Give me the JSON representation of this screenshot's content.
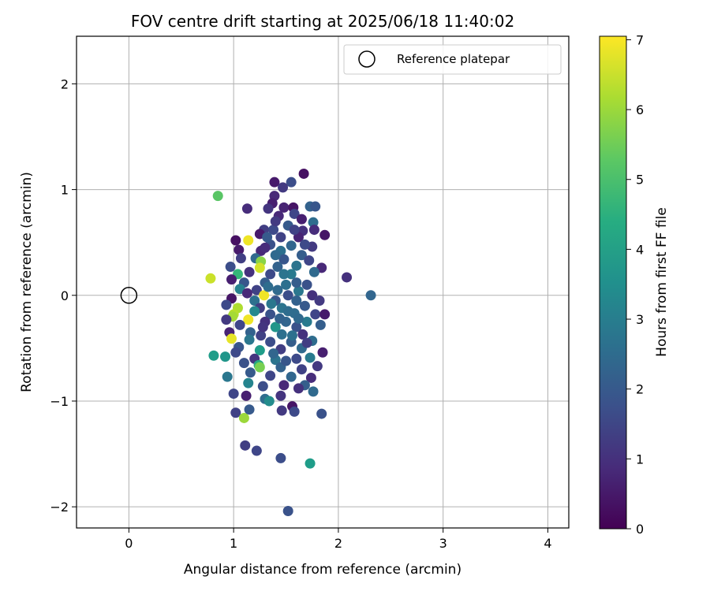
{
  "chart_data": {
    "type": "scatter",
    "title": "FOV centre drift starting at 2025/06/18 11:40:02",
    "xlabel": "Angular distance from reference (arcmin)",
    "ylabel": "Rotation from reference (arcmin)",
    "xlim": [
      -0.5,
      4.2
    ],
    "ylim": [
      -2.2,
      2.45
    ],
    "xticks": [
      0,
      1,
      2,
      3,
      4
    ],
    "xtick_labels": [
      "0",
      "1",
      "2",
      "3",
      "4"
    ],
    "yticks": [
      -2,
      -1,
      0,
      1,
      2
    ],
    "ytick_labels": [
      "−2",
      "−1",
      "0",
      "1",
      "2"
    ],
    "grid": true,
    "legend": {
      "position": "top-right",
      "label": "Reference platepar"
    },
    "reference_point": {
      "x": 0,
      "y": 0
    },
    "colorbar": {
      "label": "Hours from first FF file",
      "min": 0,
      "max": 7.05,
      "ticks": [
        0,
        1,
        2,
        3,
        4,
        5,
        6,
        7
      ],
      "tick_labels": [
        "0",
        "1",
        "2",
        "3",
        "4",
        "5",
        "6",
        "7"
      ],
      "colormap": "viridis"
    },
    "points": [
      {
        "x": 1.67,
        "y": 1.15,
        "c": 0.3
      },
      {
        "x": 1.39,
        "y": 1.07,
        "c": 0.5
      },
      {
        "x": 1.55,
        "y": 1.07,
        "c": 1.7
      },
      {
        "x": 1.47,
        "y": 1.02,
        "c": 1.2
      },
      {
        "x": 1.39,
        "y": 0.94,
        "c": 0.8
      },
      {
        "x": 0.85,
        "y": 0.94,
        "c": 5.2
      },
      {
        "x": 1.37,
        "y": 0.87,
        "c": 0.6
      },
      {
        "x": 1.48,
        "y": 0.83,
        "c": 0.7
      },
      {
        "x": 1.57,
        "y": 0.83,
        "c": 0.4
      },
      {
        "x": 1.13,
        "y": 0.82,
        "c": 0.9
      },
      {
        "x": 1.33,
        "y": 0.82,
        "c": 1.1
      },
      {
        "x": 1.73,
        "y": 0.84,
        "c": 2.2
      },
      {
        "x": 1.78,
        "y": 0.84,
        "c": 1.9
      },
      {
        "x": 1.58,
        "y": 0.77,
        "c": 1.5
      },
      {
        "x": 1.43,
        "y": 0.75,
        "c": 0.8
      },
      {
        "x": 1.65,
        "y": 0.72,
        "c": 0.6
      },
      {
        "x": 1.76,
        "y": 0.69,
        "c": 2.5
      },
      {
        "x": 1.29,
        "y": 0.62,
        "c": 1.3
      },
      {
        "x": 1.52,
        "y": 0.66,
        "c": 2.0
      },
      {
        "x": 1.38,
        "y": 0.62,
        "c": 1.6
      },
      {
        "x": 1.66,
        "y": 0.61,
        "c": 1.0
      },
      {
        "x": 1.77,
        "y": 0.62,
        "c": 0.9
      },
      {
        "x": 1.87,
        "y": 0.57,
        "c": 0.4
      },
      {
        "x": 1.25,
        "y": 0.58,
        "c": 0.5
      },
      {
        "x": 1.45,
        "y": 0.55,
        "c": 1.4
      },
      {
        "x": 1.62,
        "y": 0.55,
        "c": 0.7
      },
      {
        "x": 1.02,
        "y": 0.52,
        "c": 0.3
      },
      {
        "x": 1.14,
        "y": 0.52,
        "c": 6.9
      },
      {
        "x": 1.35,
        "y": 0.48,
        "c": 1.8
      },
      {
        "x": 1.55,
        "y": 0.47,
        "c": 2.3
      },
      {
        "x": 1.75,
        "y": 0.46,
        "c": 1.2
      },
      {
        "x": 1.05,
        "y": 0.43,
        "c": 0.5
      },
      {
        "x": 1.26,
        "y": 0.42,
        "c": 0.8
      },
      {
        "x": 1.45,
        "y": 0.42,
        "c": 2.6
      },
      {
        "x": 1.65,
        "y": 0.38,
        "c": 2.1
      },
      {
        "x": 1.07,
        "y": 0.35,
        "c": 1.3
      },
      {
        "x": 1.21,
        "y": 0.35,
        "c": 2.4
      },
      {
        "x": 1.26,
        "y": 0.32,
        "c": 5.8
      },
      {
        "x": 1.48,
        "y": 0.34,
        "c": 1.9
      },
      {
        "x": 1.72,
        "y": 0.33,
        "c": 1.5
      },
      {
        "x": 0.97,
        "y": 0.27,
        "c": 1.7
      },
      {
        "x": 1.25,
        "y": 0.26,
        "c": 6.6
      },
      {
        "x": 1.42,
        "y": 0.27,
        "c": 2.2
      },
      {
        "x": 1.6,
        "y": 0.28,
        "c": 2.7
      },
      {
        "x": 1.84,
        "y": 0.26,
        "c": 0.8
      },
      {
        "x": 1.04,
        "y": 0.2,
        "c": 4.7
      },
      {
        "x": 1.15,
        "y": 0.22,
        "c": 1.0
      },
      {
        "x": 1.35,
        "y": 0.2,
        "c": 1.6
      },
      {
        "x": 1.55,
        "y": 0.2,
        "c": 2.9
      },
      {
        "x": 1.77,
        "y": 0.22,
        "c": 2.4
      },
      {
        "x": 2.08,
        "y": 0.17,
        "c": 1.0
      },
      {
        "x": 0.78,
        "y": 0.16,
        "c": 6.5
      },
      {
        "x": 0.98,
        "y": 0.15,
        "c": 0.6
      },
      {
        "x": 1.1,
        "y": 0.12,
        "c": 1.9
      },
      {
        "x": 1.3,
        "y": 0.12,
        "c": 2.1
      },
      {
        "x": 1.5,
        "y": 0.1,
        "c": 2.6
      },
      {
        "x": 1.7,
        "y": 0.1,
        "c": 1.8
      },
      {
        "x": 1.06,
        "y": 0.06,
        "c": 3.1
      },
      {
        "x": 1.22,
        "y": 0.05,
        "c": 1.4
      },
      {
        "x": 1.42,
        "y": 0.05,
        "c": 2.4
      },
      {
        "x": 1.62,
        "y": 0.04,
        "c": 2.8
      },
      {
        "x": 1.29,
        "y": 0.0,
        "c": 6.9
      },
      {
        "x": 1.13,
        "y": 0.02,
        "c": 0.8
      },
      {
        "x": 1.52,
        "y": 0.0,
        "c": 1.7
      },
      {
        "x": 1.75,
        "y": 0.0,
        "c": 1.0
      },
      {
        "x": 2.31,
        "y": 0.0,
        "c": 2.3
      },
      {
        "x": 0.98,
        "y": -0.03,
        "c": 0.4
      },
      {
        "x": 1.2,
        "y": -0.05,
        "c": 2.6
      },
      {
        "x": 1.4,
        "y": -0.05,
        "c": 1.9
      },
      {
        "x": 1.6,
        "y": -0.05,
        "c": 2.2
      },
      {
        "x": 1.82,
        "y": -0.05,
        "c": 1.2
      },
      {
        "x": 0.93,
        "y": -0.09,
        "c": 1.6
      },
      {
        "x": 1.04,
        "y": -0.12,
        "c": 6.2
      },
      {
        "x": 1.25,
        "y": -0.12,
        "c": 1.3
      },
      {
        "x": 1.46,
        "y": -0.12,
        "c": 2.7
      },
      {
        "x": 1.68,
        "y": -0.1,
        "c": 2.0
      },
      {
        "x": 1.2,
        "y": -0.15,
        "c": 3.3
      },
      {
        "x": 1.0,
        "y": -0.18,
        "c": 6.3
      },
      {
        "x": 0.99,
        "y": -0.2,
        "c": 6.1
      },
      {
        "x": 1.35,
        "y": -0.18,
        "c": 1.8
      },
      {
        "x": 1.58,
        "y": -0.17,
        "c": 2.5
      },
      {
        "x": 1.78,
        "y": -0.18,
        "c": 1.5
      },
      {
        "x": 1.87,
        "y": -0.18,
        "c": 0.5
      },
      {
        "x": 0.93,
        "y": -0.23,
        "c": 1.2
      },
      {
        "x": 1.14,
        "y": -0.23,
        "c": 6.9
      },
      {
        "x": 1.3,
        "y": -0.25,
        "c": 1.0
      },
      {
        "x": 1.5,
        "y": -0.25,
        "c": 2.3
      },
      {
        "x": 1.7,
        "y": -0.25,
        "c": 2.9
      },
      {
        "x": 1.06,
        "y": -0.28,
        "c": 1.5
      },
      {
        "x": 1.4,
        "y": -0.3,
        "c": 3.7
      },
      {
        "x": 1.6,
        "y": -0.3,
        "c": 1.8
      },
      {
        "x": 1.83,
        "y": -0.28,
        "c": 2.1
      },
      {
        "x": 0.96,
        "y": -0.35,
        "c": 0.7
      },
      {
        "x": 1.16,
        "y": -0.35,
        "c": 2.2
      },
      {
        "x": 1.26,
        "y": -0.38,
        "c": 1.4
      },
      {
        "x": 1.46,
        "y": -0.37,
        "c": 2.6
      },
      {
        "x": 1.66,
        "y": -0.37,
        "c": 1.0
      },
      {
        "x": 0.98,
        "y": -0.41,
        "c": 6.8
      },
      {
        "x": 1.15,
        "y": -0.42,
        "c": 2.8
      },
      {
        "x": 1.35,
        "y": -0.44,
        "c": 1.7
      },
      {
        "x": 1.55,
        "y": -0.44,
        "c": 2.1
      },
      {
        "x": 1.75,
        "y": -0.43,
        "c": 2.5
      },
      {
        "x": 1.05,
        "y": -0.49,
        "c": 1.9
      },
      {
        "x": 1.25,
        "y": -0.52,
        "c": 3.9
      },
      {
        "x": 1.45,
        "y": -0.51,
        "c": 1.3
      },
      {
        "x": 1.65,
        "y": -0.5,
        "c": 2.4
      },
      {
        "x": 1.85,
        "y": -0.54,
        "c": 0.6
      },
      {
        "x": 1.02,
        "y": -0.54,
        "c": 1.6
      },
      {
        "x": 0.81,
        "y": -0.57,
        "c": 3.9
      },
      {
        "x": 0.92,
        "y": -0.58,
        "c": 3.7
      },
      {
        "x": 1.2,
        "y": -0.6,
        "c": 1.1
      },
      {
        "x": 1.4,
        "y": -0.61,
        "c": 2.7
      },
      {
        "x": 1.6,
        "y": -0.6,
        "c": 1.6
      },
      {
        "x": 1.73,
        "y": -0.59,
        "c": 2.9
      },
      {
        "x": 1.1,
        "y": -0.64,
        "c": 1.8
      },
      {
        "x": 1.24,
        "y": -0.66,
        "c": 4.2
      },
      {
        "x": 1.25,
        "y": -0.68,
        "c": 5.6
      },
      {
        "x": 1.45,
        "y": -0.68,
        "c": 2.2
      },
      {
        "x": 1.65,
        "y": -0.7,
        "c": 1.4
      },
      {
        "x": 1.8,
        "y": -0.67,
        "c": 1.2
      },
      {
        "x": 1.16,
        "y": -0.73,
        "c": 2.0
      },
      {
        "x": 1.35,
        "y": -0.76,
        "c": 1.5
      },
      {
        "x": 1.55,
        "y": -0.77,
        "c": 2.3
      },
      {
        "x": 0.94,
        "y": -0.77,
        "c": 2.8
      },
      {
        "x": 1.74,
        "y": -0.78,
        "c": 0.9
      },
      {
        "x": 1.14,
        "y": -0.83,
        "c": 3.2
      },
      {
        "x": 1.28,
        "y": -0.86,
        "c": 1.7
      },
      {
        "x": 1.48,
        "y": -0.85,
        "c": 0.8
      },
      {
        "x": 1.68,
        "y": -0.85,
        "c": 2.1
      },
      {
        "x": 1.76,
        "y": -0.91,
        "c": 2.4
      },
      {
        "x": 1.0,
        "y": -0.93,
        "c": 1.5
      },
      {
        "x": 1.12,
        "y": -0.95,
        "c": 0.6
      },
      {
        "x": 1.3,
        "y": -0.98,
        "c": 2.5
      },
      {
        "x": 1.34,
        "y": -1.0,
        "c": 3.4
      },
      {
        "x": 1.45,
        "y": -0.95,
        "c": 1.1
      },
      {
        "x": 1.56,
        "y": -1.05,
        "c": 0.4
      },
      {
        "x": 1.02,
        "y": -1.11,
        "c": 1.4
      },
      {
        "x": 1.1,
        "y": -1.16,
        "c": 6.0
      },
      {
        "x": 1.15,
        "y": -1.08,
        "c": 2.0
      },
      {
        "x": 1.46,
        "y": -1.09,
        "c": 1.2
      },
      {
        "x": 1.58,
        "y": -1.1,
        "c": 1.6
      },
      {
        "x": 1.84,
        "y": -1.12,
        "c": 1.8
      },
      {
        "x": 1.11,
        "y": -1.42,
        "c": 1.3
      },
      {
        "x": 1.22,
        "y": -1.47,
        "c": 1.5
      },
      {
        "x": 1.45,
        "y": -1.54,
        "c": 1.7
      },
      {
        "x": 1.73,
        "y": -1.59,
        "c": 3.9
      },
      {
        "x": 1.52,
        "y": -2.04,
        "c": 1.8
      },
      {
        "x": 1.32,
        "y": 0.55,
        "c": 2.0
      },
      {
        "x": 1.4,
        "y": 0.38,
        "c": 2.4
      },
      {
        "x": 1.48,
        "y": 0.2,
        "c": 2.7
      },
      {
        "x": 1.52,
        "y": -0.15,
        "c": 2.5
      },
      {
        "x": 1.44,
        "y": -0.22,
        "c": 2.2
      },
      {
        "x": 1.56,
        "y": -0.38,
        "c": 2.6
      },
      {
        "x": 1.38,
        "y": -0.55,
        "c": 2.3
      },
      {
        "x": 1.5,
        "y": -0.62,
        "c": 1.9
      },
      {
        "x": 1.6,
        "y": 0.12,
        "c": 2.1
      },
      {
        "x": 1.62,
        "y": -0.22,
        "c": 2.4
      },
      {
        "x": 1.33,
        "y": 0.08,
        "c": 2.5
      },
      {
        "x": 1.36,
        "y": -0.08,
        "c": 2.8
      },
      {
        "x": 1.58,
        "y": 0.62,
        "c": 1.4
      },
      {
        "x": 1.3,
        "y": 0.45,
        "c": 0.9
      },
      {
        "x": 1.68,
        "y": 0.48,
        "c": 1.6
      },
      {
        "x": 1.7,
        "y": -0.45,
        "c": 1.3
      },
      {
        "x": 1.28,
        "y": -0.3,
        "c": 1.1
      },
      {
        "x": 1.62,
        "y": -0.88,
        "c": 1.0
      },
      {
        "x": 1.4,
        "y": 0.7,
        "c": 1.2
      }
    ]
  }
}
